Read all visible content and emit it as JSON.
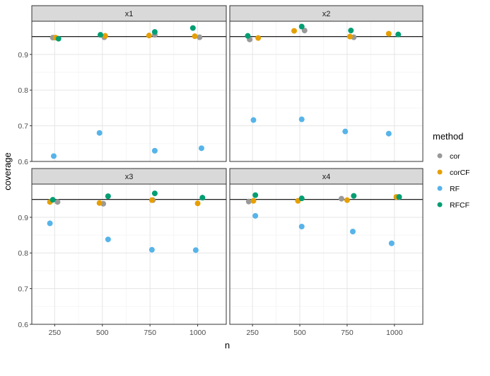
{
  "chart_data": {
    "type": "scatter",
    "facets": [
      "x1",
      "x2",
      "x3",
      "x4"
    ],
    "xlabel": "n",
    "ylabel": "coverage",
    "x_ticks": [
      250,
      500,
      750,
      1000
    ],
    "y_ticks": [
      0.6,
      0.7,
      0.8,
      0.9
    ],
    "xlim": [
      130,
      1150
    ],
    "ylim": [
      0.6,
      0.993
    ],
    "reference_line": 0.95,
    "grid": true,
    "legend": {
      "title": "method",
      "position": "right",
      "entries": [
        {
          "name": "cor",
          "color": "#999999"
        },
        {
          "name": "corCF",
          "color": "#E69F00"
        },
        {
          "name": "RF",
          "color": "#56B4E9"
        },
        {
          "name": "RFCF",
          "color": "#009E73"
        }
      ]
    },
    "panels": [
      {
        "facet": "x1",
        "series": [
          {
            "name": "cor",
            "points": [
              [
                240,
                0.947
              ],
              [
                510,
                0.948
              ],
              [
                775,
                0.955
              ],
              [
                1010,
                0.948
              ]
            ]
          },
          {
            "name": "corCF",
            "points": [
              [
                255,
                0.947
              ],
              [
                515,
                0.952
              ],
              [
                745,
                0.953
              ],
              [
                985,
                0.951
              ]
            ]
          },
          {
            "name": "RF",
            "points": [
              [
                245,
                0.615
              ],
              [
                485,
                0.68
              ],
              [
                775,
                0.63
              ],
              [
                1020,
                0.637
              ]
            ]
          },
          {
            "name": "RFCF",
            "points": [
              [
                270,
                0.944
              ],
              [
                490,
                0.955
              ],
              [
                775,
                0.963
              ],
              [
                975,
                0.974
              ]
            ]
          }
        ]
      },
      {
        "facet": "x2",
        "series": [
          {
            "name": "cor",
            "points": [
              [
                235,
                0.942
              ],
              [
                525,
                0.967
              ],
              [
                785,
                0.948
              ]
            ]
          },
          {
            "name": "corCF",
            "points": [
              [
                280,
                0.946
              ],
              [
                470,
                0.966
              ],
              [
                765,
                0.95
              ],
              [
                970,
                0.958
              ]
            ]
          },
          {
            "name": "RF",
            "points": [
              [
                255,
                0.716
              ],
              [
                510,
                0.718
              ],
              [
                740,
                0.684
              ],
              [
                970,
                0.678
              ]
            ]
          },
          {
            "name": "RFCF",
            "points": [
              [
                225,
                0.952
              ],
              [
                510,
                0.978
              ],
              [
                770,
                0.967
              ],
              [
                1020,
                0.956
              ]
            ]
          }
        ]
      },
      {
        "facet": "x3",
        "series": [
          {
            "name": "cor",
            "points": [
              [
                265,
                0.943
              ],
              [
                505,
                0.938
              ],
              [
                765,
                0.948
              ]
            ]
          },
          {
            "name": "corCF",
            "points": [
              [
                225,
                0.943
              ],
              [
                485,
                0.94
              ],
              [
                760,
                0.948
              ],
              [
                1000,
                0.939
              ]
            ]
          },
          {
            "name": "RF",
            "points": [
              [
                225,
                0.883
              ],
              [
                530,
                0.838
              ],
              [
                760,
                0.809
              ],
              [
                990,
                0.808
              ]
            ]
          },
          {
            "name": "RFCF",
            "points": [
              [
                240,
                0.949
              ],
              [
                530,
                0.959
              ],
              [
                775,
                0.967
              ],
              [
                1025,
                0.955
              ]
            ]
          }
        ]
      },
      {
        "facet": "x4",
        "series": [
          {
            "name": "cor",
            "points": [
              [
                230,
                0.944
              ],
              [
                720,
                0.952
              ]
            ]
          },
          {
            "name": "corCF",
            "points": [
              [
                255,
                0.946
              ],
              [
                490,
                0.946
              ],
              [
                750,
                0.948
              ],
              [
                1010,
                0.957
              ]
            ]
          },
          {
            "name": "RF",
            "points": [
              [
                265,
                0.904
              ],
              [
                510,
                0.874
              ],
              [
                780,
                0.86
              ],
              [
                985,
                0.827
              ]
            ]
          },
          {
            "name": "RFCF",
            "points": [
              [
                265,
                0.962
              ],
              [
                510,
                0.953
              ],
              [
                785,
                0.96
              ],
              [
                1025,
                0.957
              ]
            ]
          }
        ]
      }
    ]
  }
}
